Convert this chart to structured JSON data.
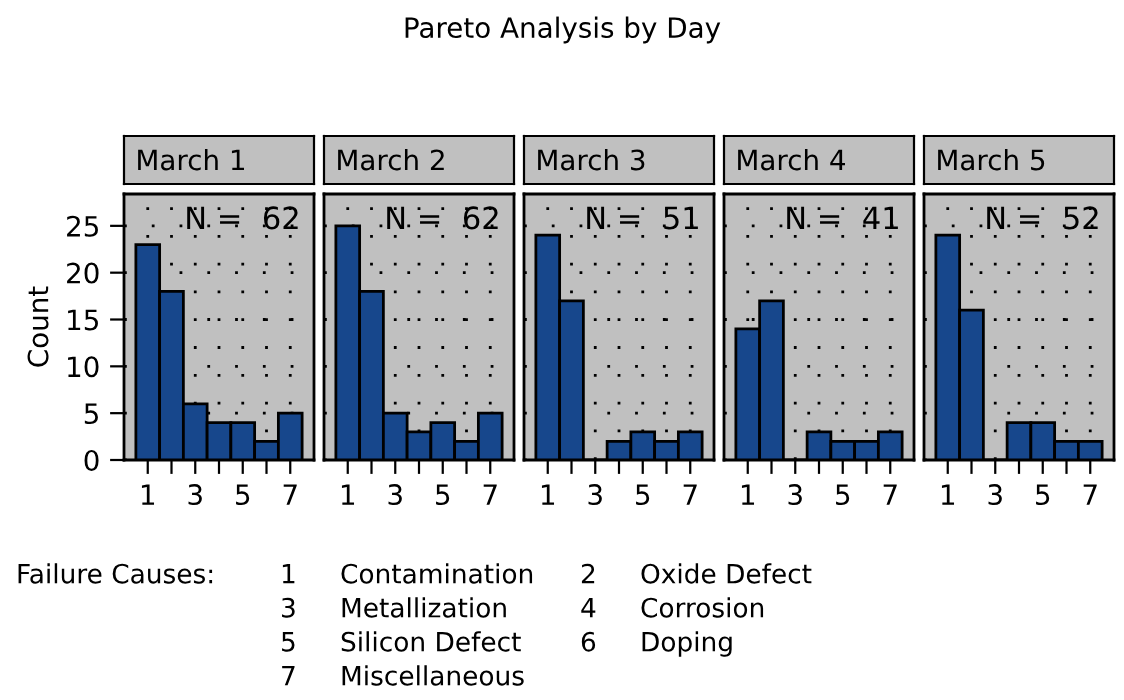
{
  "chart_data": [
    {
      "type": "bar",
      "title": "March 1",
      "ylabel": "Count",
      "categories": [
        "1",
        null,
        "3",
        null,
        "5",
        null,
        "7"
      ],
      "values": [
        23,
        18,
        6,
        4,
        4,
        2,
        5
      ],
      "color": "#17478c",
      "ylim": [
        0,
        28.4
      ],
      "yticks": [
        0,
        5,
        10,
        15,
        20,
        25
      ],
      "grid": true,
      "annotations": [
        "N =  62",
        "Pareto Analysis by Day",
        "Failure Causes:",
        "1 Contamination",
        "2 Oxide Defect",
        "3 Metallization",
        "4 Corrosion",
        "5 Silicon Defect",
        "6 Doping",
        "7 Miscellaneous"
      ]
    },
    {
      "type": "bar",
      "title": "March 2",
      "categories": [
        "1",
        null,
        "3",
        null,
        "5",
        null,
        "7"
      ],
      "values": [
        25,
        18,
        5,
        3,
        4,
        2,
        5
      ],
      "color": "#17478c",
      "ylim": [
        0,
        28.4
      ],
      "yticks": [
        0,
        5,
        10,
        15,
        20,
        25
      ],
      "grid": true,
      "tick_labels": "x",
      "annotations": [
        "N =  62"
      ]
    },
    {
      "type": "bar",
      "title": "March 3",
      "categories": [
        "1",
        null,
        "3",
        null,
        "5",
        null,
        "7"
      ],
      "values": [
        24,
        17,
        0,
        2,
        3,
        2,
        3
      ],
      "color": "#17478c",
      "ylim": [
        0,
        28.4
      ],
      "yticks": [
        0,
        5,
        10,
        15,
        20,
        25
      ],
      "grid": true,
      "tick_labels": "x",
      "annotations": [
        "N =  51"
      ]
    },
    {
      "type": "bar",
      "title": "March 4",
      "categories": [
        "1",
        null,
        "3",
        null,
        "5",
        null,
        "7"
      ],
      "values": [
        14,
        17,
        0,
        3,
        2,
        2,
        3
      ],
      "color": "#17478c",
      "ylim": [
        0,
        28.4
      ],
      "yticks": [
        0,
        5,
        10,
        15,
        20,
        25
      ],
      "grid": true,
      "tick_labels": "x",
      "annotations": [
        "N =  41"
      ]
    },
    {
      "type": "bar",
      "title": "March 5",
      "categories": [
        "1",
        null,
        "3",
        null,
        "5",
        null,
        "7"
      ],
      "values": [
        24,
        16,
        0,
        4,
        4,
        2,
        2
      ],
      "color": "#17478c",
      "ylim": [
        0,
        28.4
      ],
      "yticks": [
        0,
        5,
        10,
        15,
        20,
        25
      ],
      "grid": true,
      "tick_labels": "x",
      "annotations": [
        "N =  52"
      ]
    }
  ]
}
